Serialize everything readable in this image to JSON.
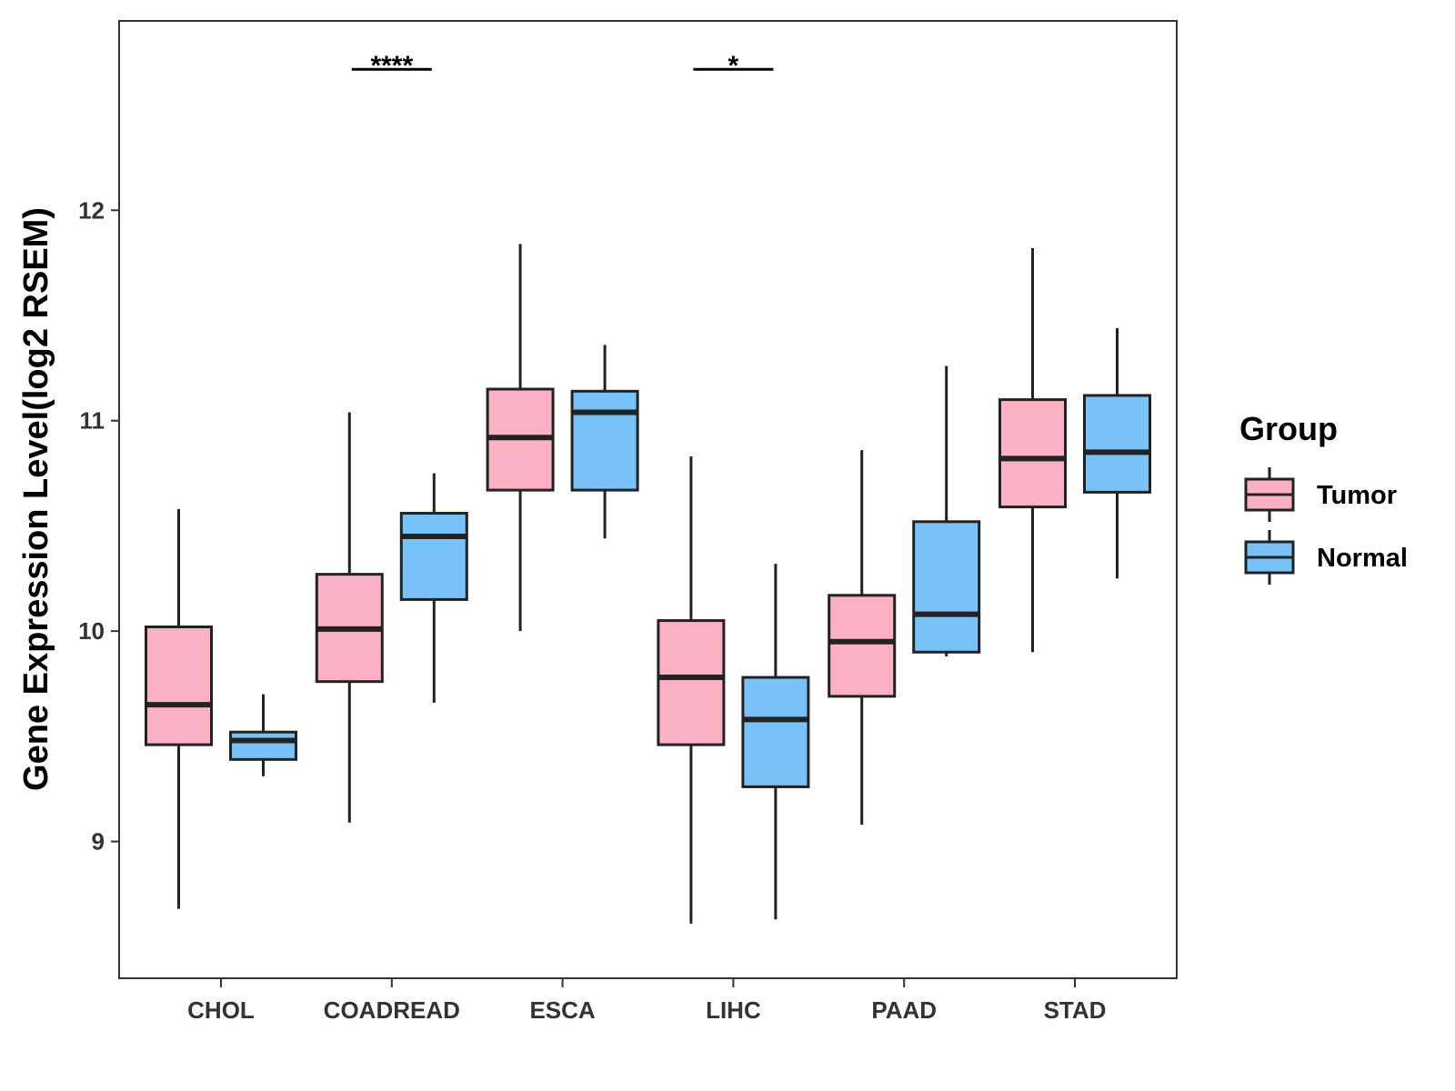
{
  "chart_data": {
    "type": "boxplot",
    "title": "",
    "xlabel": "",
    "ylabel": "Gene Expression Level(log2 RSEM)",
    "ylim": [
      8.35,
      12.9
    ],
    "yticks": [
      9,
      10,
      11,
      12
    ],
    "grid": false,
    "legend_position": "right",
    "legend_title": "Group",
    "categories": [
      "CHOL",
      "COADREAD",
      "ESCA",
      "LIHC",
      "PAAD",
      "STAD"
    ],
    "series": [
      {
        "name": "Tumor",
        "color": "#FBB1C3",
        "boxes": [
          {
            "category": "CHOL",
            "min": 8.68,
            "q1": 9.46,
            "median": 9.65,
            "q3": 10.02,
            "max": 10.58
          },
          {
            "category": "COADREAD",
            "min": 9.09,
            "q1": 9.76,
            "median": 10.01,
            "q3": 10.27,
            "max": 11.04
          },
          {
            "category": "ESCA",
            "min": 10.0,
            "q1": 10.67,
            "median": 10.92,
            "q3": 11.15,
            "max": 11.84
          },
          {
            "category": "LIHC",
            "min": 8.61,
            "q1": 9.46,
            "median": 9.78,
            "q3": 10.05,
            "max": 10.83
          },
          {
            "category": "PAAD",
            "min": 9.08,
            "q1": 9.69,
            "median": 9.95,
            "q3": 10.17,
            "max": 10.86
          },
          {
            "category": "STAD",
            "min": 9.9,
            "q1": 10.59,
            "median": 10.82,
            "q3": 11.1,
            "max": 11.82
          }
        ]
      },
      {
        "name": "Normal",
        "color": "#78C2F8",
        "boxes": [
          {
            "category": "CHOL",
            "min": 9.31,
            "q1": 9.39,
            "median": 9.48,
            "q3": 9.52,
            "max": 9.7
          },
          {
            "category": "COADREAD",
            "min": 9.66,
            "q1": 10.15,
            "median": 10.45,
            "q3": 10.56,
            "max": 10.75
          },
          {
            "category": "ESCA",
            "min": 10.44,
            "q1": 10.67,
            "median": 11.04,
            "q3": 11.14,
            "max": 11.36
          },
          {
            "category": "LIHC",
            "min": 8.63,
            "q1": 9.26,
            "median": 9.58,
            "q3": 9.78,
            "max": 10.32
          },
          {
            "category": "PAAD",
            "min": 9.88,
            "q1": 9.9,
            "median": 10.08,
            "q3": 10.52,
            "max": 11.26
          },
          {
            "category": "STAD",
            "min": 10.25,
            "q1": 10.66,
            "median": 10.85,
            "q3": 11.12,
            "max": 11.44
          }
        ]
      }
    ],
    "annotations": [
      {
        "category": "COADREAD",
        "label": "****",
        "y": 12.67
      },
      {
        "category": "LIHC",
        "label": "*",
        "y": 12.67
      }
    ]
  }
}
